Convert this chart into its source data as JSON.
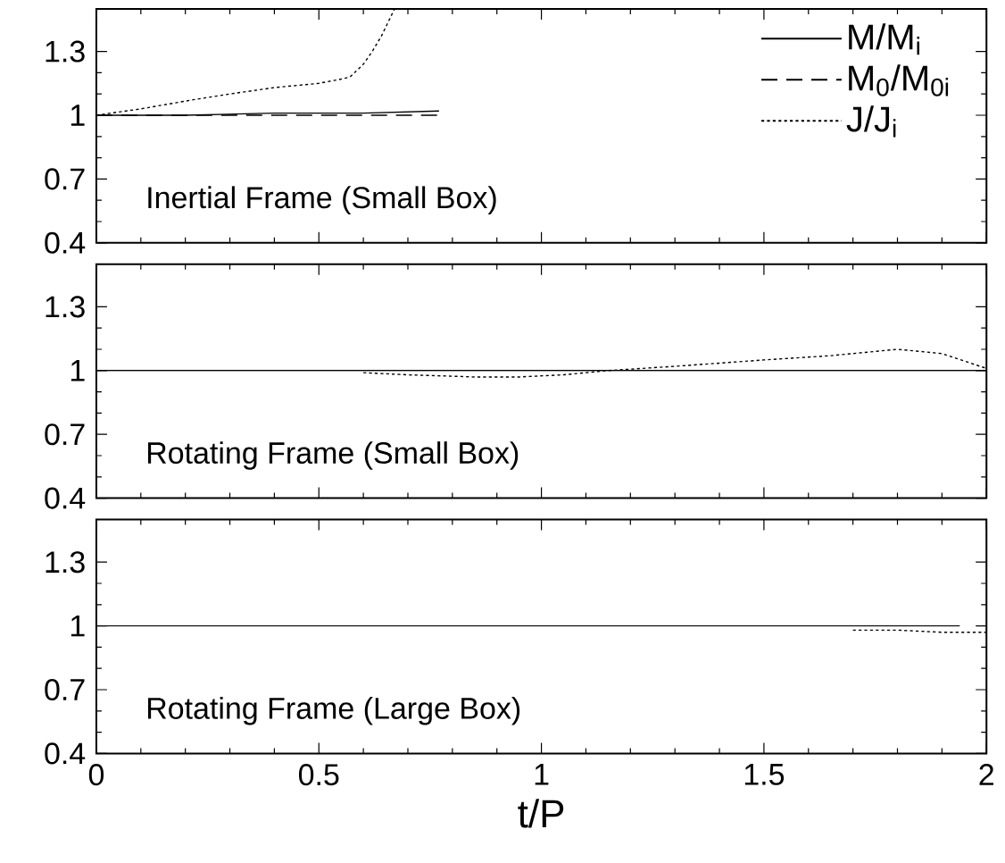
{
  "chart_data": [
    {
      "type": "line",
      "xlim": [
        0,
        2
      ],
      "ylim": [
        0.4,
        1.5
      ],
      "xticks": [
        0,
        0.5,
        1,
        1.5,
        2
      ],
      "yticks": [
        0.4,
        0.7,
        1,
        1.3
      ],
      "tick_labels": "y",
      "legend": "top right",
      "annotations": [
        "Inertial Frame  (Small Box)"
      ],
      "series": [
        {
          "name": "M/M$_{i}$",
          "color": "#000000",
          "line_style": "solid",
          "x": [
            0,
            0.2,
            0.4,
            0.6,
            0.77
          ],
          "values": [
            1,
            1,
            1.01,
            1.01,
            1.02
          ]
        },
        {
          "name": "M$_{0}$/M$_{0i}$",
          "color": "#000000",
          "line_style": "dashed",
          "x": [
            0,
            0.2,
            0.4,
            0.6,
            0.77
          ],
          "values": [
            1,
            1,
            1,
            1,
            1
          ]
        },
        {
          "name": "J/J$_{i}$",
          "color": "#000000",
          "line_style": "dotted",
          "x": [
            0,
            0.1,
            0.21,
            0.3,
            0.4,
            0.5,
            0.55,
            0.57,
            0.6,
            0.62,
            0.64,
            0.67
          ],
          "values": [
            1,
            1.03,
            1.07,
            1.1,
            1.13,
            1.15,
            1.17,
            1.18,
            1.24,
            1.3,
            1.37,
            1.5
          ]
        }
      ]
    },
    {
      "type": "line",
      "xlim": [
        0,
        2
      ],
      "ylim": [
        0.4,
        1.5
      ],
      "xticks": [
        0,
        0.5,
        1,
        1.5,
        2
      ],
      "yticks": [
        0.4,
        0.7,
        1,
        1.3
      ],
      "tick_labels": "y",
      "annotations": [
        "Rotating Frame  (Small Box)"
      ],
      "series": [
        {
          "color": "#000000",
          "line_style": "solid",
          "x": [
            0,
            0.5,
            1,
            1.5,
            2
          ],
          "values": [
            1,
            1,
            1,
            1,
            1
          ]
        },
        {
          "color": "#000000",
          "line_style": "dotted",
          "x": [
            0.6,
            0.7,
            0.85,
            0.95,
            1.05,
            1.15,
            1.3,
            1.5,
            1.65,
            1.8,
            1.9,
            2
          ],
          "values": [
            0.99,
            0.98,
            0.97,
            0.97,
            0.98,
            1,
            1.02,
            1.05,
            1.07,
            1.1,
            1.08,
            1.01
          ]
        }
      ]
    },
    {
      "type": "line",
      "xlim": [
        0,
        2
      ],
      "ylim": [
        0.4,
        1.5
      ],
      "xticks": [
        0,
        0.5,
        1,
        1.5,
        2
      ],
      "yticks": [
        0.4,
        0.7,
        1,
        1.3
      ],
      "xlabel": "t/P",
      "annotations": [
        "Rotating Frame (Large Box)"
      ],
      "series": [
        {
          "color": "#000000",
          "line_style": "solid",
          "x": [
            0,
            0.5,
            1,
            1.5,
            1.94
          ],
          "values": [
            1,
            1,
            1,
            1,
            1
          ]
        },
        {
          "color": "#000000",
          "line_style": "dotted",
          "x": [
            1.7,
            1.8,
            1.9,
            2
          ],
          "values": [
            0.98,
            0.98,
            0.97,
            0.97
          ]
        }
      ]
    }
  ]
}
